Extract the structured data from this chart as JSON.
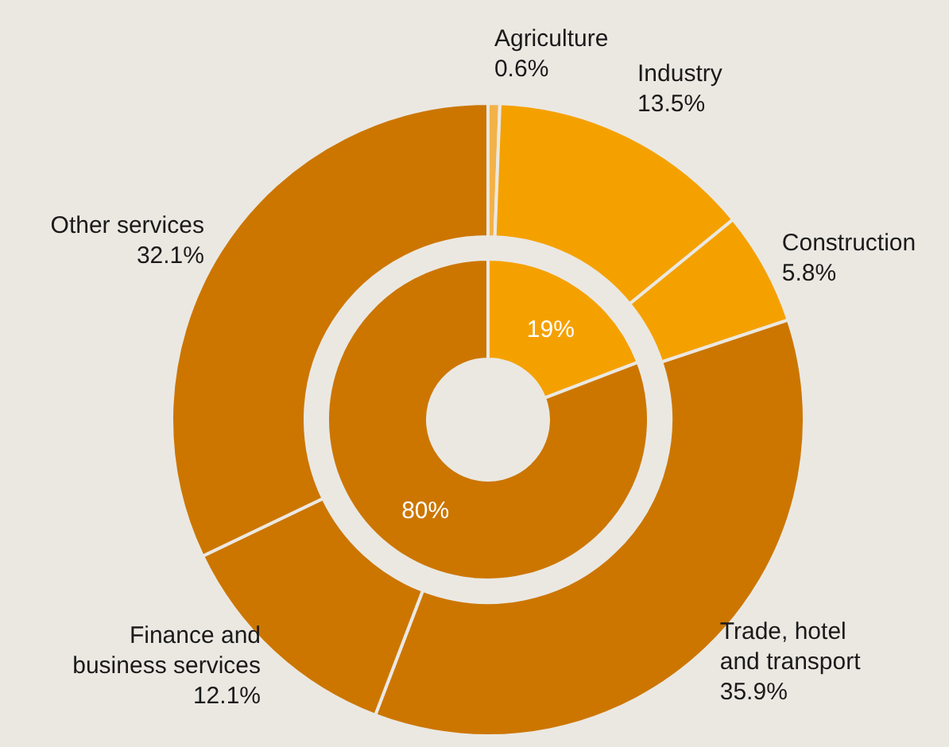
{
  "chart_data": [
    {
      "type": "donut",
      "categories": [
        "Agriculture",
        "Industry",
        "Construction",
        "Trade, hotel and transport",
        "Finance and business services",
        "Other services"
      ],
      "values": [
        0.6,
        13.5,
        5.8,
        35.9,
        12.1,
        32.1
      ],
      "value_labels": [
        "0.6%",
        "13.5%",
        "5.8%",
        "35.9%",
        "12.1%",
        "32.1%"
      ],
      "colors": [
        "#f2b24a",
        "#f4a100",
        "#f4a100",
        "#cc7600",
        "#cc7600",
        "#cc7600"
      ]
    },
    {
      "type": "donut",
      "categories": [
        null,
        null
      ],
      "values": [
        19,
        80
      ],
      "value_labels": [
        "19%",
        "80%"
      ],
      "colors": [
        "#f4a100",
        "#cc7600"
      ]
    }
  ]
}
